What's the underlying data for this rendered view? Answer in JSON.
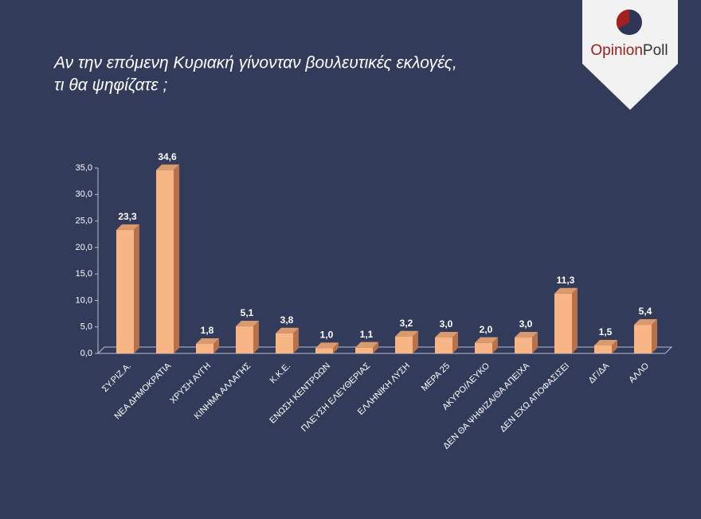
{
  "logo": {
    "first": "Opinion",
    "second": "Poll"
  },
  "chart_data": {
    "type": "bar",
    "title": [
      "Αν την επόμενη Κυριακή γίνονταν βουλευτικές εκλογές,",
      "τι θα ψηφίζατε ;"
    ],
    "categories": [
      "ΣΥ.ΡΙΖ.Α.",
      "ΝΕΑ ΔΗΜΟΚΡΑΤΙΑ",
      "ΧΡΥΣΗ ΑΥΓΗ",
      "ΚΙΝΗΜΑ ΑΛΛΑΓΗΣ",
      "Κ.Κ.Ε.",
      "ΕΝΩΣΗ ΚΕΝΤΡΩΩΝ",
      "ΠΛΕΥΣΗ ΕΛΕΥΘΕΡΙΑΣ",
      "ΕΛΛΗΝΙΚΗ ΛΥΣΗ",
      "ΜΕΡΑ 25",
      "ΑΚΥΡΟ/ΛΕΥΚΟ",
      "ΔΕΝ ΘΑ ΨΗΦΙΖΑ/ΘΑ ΑΠΕΙΧΑ",
      "ΔΕΝ ΕΧΩ ΑΠΟΦΑΣΙΣΕΙ",
      "ΔΓ/ΔΑ",
      "ΑΛΛΟ"
    ],
    "values": [
      23.3,
      34.6,
      1.8,
      5.1,
      3.8,
      1.0,
      1.1,
      3.2,
      3.0,
      2.0,
      3.0,
      11.3,
      1.5,
      5.4
    ],
    "value_labels": [
      "23,3",
      "34,6",
      "1,8",
      "5,1",
      "3,8",
      "1,0",
      "1,1",
      "3,2",
      "3,0",
      "2,0",
      "3,0",
      "11,3",
      "1,5",
      "5,4"
    ],
    "color": "#f8b586",
    "ylim": [
      0,
      35
    ],
    "yticks": [
      {
        "value": 0,
        "label": "0,0"
      },
      {
        "value": 5,
        "label": "5,0"
      },
      {
        "value": 10,
        "label": "10,0"
      },
      {
        "value": 15,
        "label": "15,0"
      },
      {
        "value": 20,
        "label": "20,0"
      },
      {
        "value": 25,
        "label": "25,0"
      },
      {
        "value": 30,
        "label": "30,0"
      },
      {
        "value": 35,
        "label": "35,0"
      }
    ],
    "grid": false
  }
}
